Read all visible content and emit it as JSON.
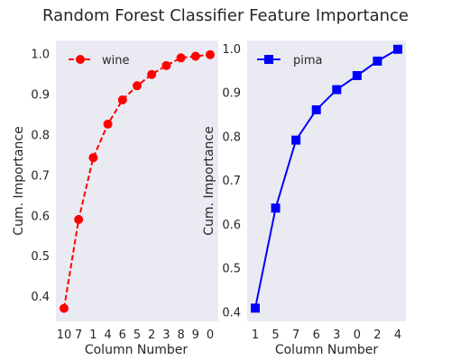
{
  "chart_data": {
    "title": "Random Forest Classifier Feature Importance",
    "panels": [
      {
        "type": "line",
        "series_name": "wine",
        "color": "#ff0000",
        "line_style": "dashed",
        "marker": "circle",
        "categories": [
          "10",
          "7",
          "1",
          "4",
          "6",
          "5",
          "2",
          "3",
          "8",
          "9",
          "0"
        ],
        "values": [
          0.372,
          0.592,
          0.745,
          0.828,
          0.888,
          0.923,
          0.951,
          0.973,
          0.992,
          0.996,
          1.0
        ],
        "xlabel": "Column Number",
        "ylabel": "Cum. Importance",
        "ylim": [
          0.34,
          1.035
        ],
        "yticks": [
          "0.4",
          "0.5",
          "0.6",
          "0.7",
          "0.8",
          "0.9",
          "1.0"
        ],
        "legend_position": "top-left",
        "grid": false
      },
      {
        "type": "line",
        "series_name": "pima",
        "color": "#0000ff",
        "line_style": "solid",
        "marker": "square",
        "categories": [
          "1",
          "5",
          "7",
          "6",
          "3",
          "0",
          "2",
          "4"
        ],
        "values": [
          0.41,
          0.638,
          0.793,
          0.862,
          0.908,
          0.94,
          0.973,
          1.0
        ],
        "xlabel": "Column Number",
        "ylabel": "Cum. Importance",
        "ylim": [
          0.38,
          1.02
        ],
        "yticks": [
          "0.4",
          "0.5",
          "0.6",
          "0.7",
          "0.8",
          "0.9",
          "1.0"
        ],
        "legend_position": "top-left",
        "grid": false
      }
    ]
  }
}
